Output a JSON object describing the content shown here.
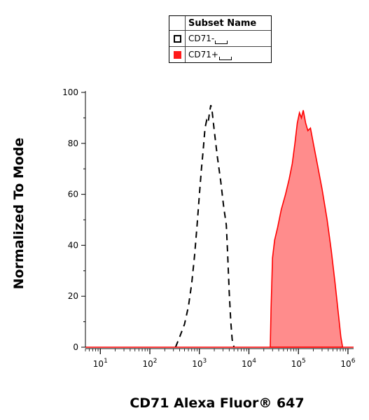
{
  "legend": {
    "header": "Subset Name",
    "items": [
      {
        "label": "CD71-",
        "style": "outline"
      },
      {
        "label": "CD71+",
        "style": "filled"
      }
    ]
  },
  "chart_data": {
    "type": "area",
    "xlabel": "CD71 Alexa Fluor® 647",
    "ylabel": "Normalized To Mode",
    "x_scale": "log",
    "xlim": [
      5,
      1300000
    ],
    "ylim": [
      0,
      100
    ],
    "x_ticks": [
      {
        "value": 10,
        "base": "10",
        "exp": "1"
      },
      {
        "value": 100,
        "base": "10",
        "exp": "2"
      },
      {
        "value": 1000,
        "base": "10",
        "exp": "3"
      },
      {
        "value": 10000,
        "base": "10",
        "exp": "4"
      },
      {
        "value": 100000,
        "base": "10",
        "exp": "5"
      },
      {
        "value": 1000000,
        "base": "10",
        "exp": "6"
      }
    ],
    "y_ticks": [
      0,
      20,
      40,
      60,
      80,
      100
    ],
    "series": [
      {
        "name": "CD71-",
        "style": "dashed",
        "color": "#000000",
        "points": [
          [
            330,
            0
          ],
          [
            400,
            4
          ],
          [
            500,
            9
          ],
          [
            600,
            16
          ],
          [
            700,
            25
          ],
          [
            800,
            36
          ],
          [
            900,
            48
          ],
          [
            1000,
            60
          ],
          [
            1100,
            70
          ],
          [
            1200,
            78
          ],
          [
            1300,
            86
          ],
          [
            1400,
            89
          ],
          [
            1500,
            88
          ],
          [
            1600,
            92
          ],
          [
            1700,
            95
          ],
          [
            1800,
            93
          ],
          [
            2000,
            85
          ],
          [
            2300,
            75
          ],
          [
            2700,
            65
          ],
          [
            3100,
            55
          ],
          [
            3500,
            48
          ],
          [
            3700,
            38
          ],
          [
            4000,
            22
          ],
          [
            4300,
            10
          ],
          [
            4600,
            3
          ],
          [
            5000,
            0
          ]
        ]
      },
      {
        "name": "CD71+",
        "style": "filled",
        "color": "#ff0000",
        "fill": "#ff8c8c",
        "points": [
          [
            27000,
            0
          ],
          [
            28000,
            15
          ],
          [
            30000,
            35
          ],
          [
            33000,
            42
          ],
          [
            38000,
            47
          ],
          [
            45000,
            54
          ],
          [
            55000,
            60
          ],
          [
            65000,
            66
          ],
          [
            75000,
            72
          ],
          [
            85000,
            80
          ],
          [
            95000,
            88
          ],
          [
            105000,
            92
          ],
          [
            115000,
            90
          ],
          [
            125000,
            93
          ],
          [
            140000,
            88
          ],
          [
            155000,
            85
          ],
          [
            175000,
            86
          ],
          [
            200000,
            80
          ],
          [
            240000,
            72
          ],
          [
            300000,
            62
          ],
          [
            380000,
            50
          ],
          [
            460000,
            38
          ],
          [
            550000,
            25
          ],
          [
            650000,
            12
          ],
          [
            720000,
            4
          ],
          [
            780000,
            0
          ]
        ]
      }
    ]
  }
}
